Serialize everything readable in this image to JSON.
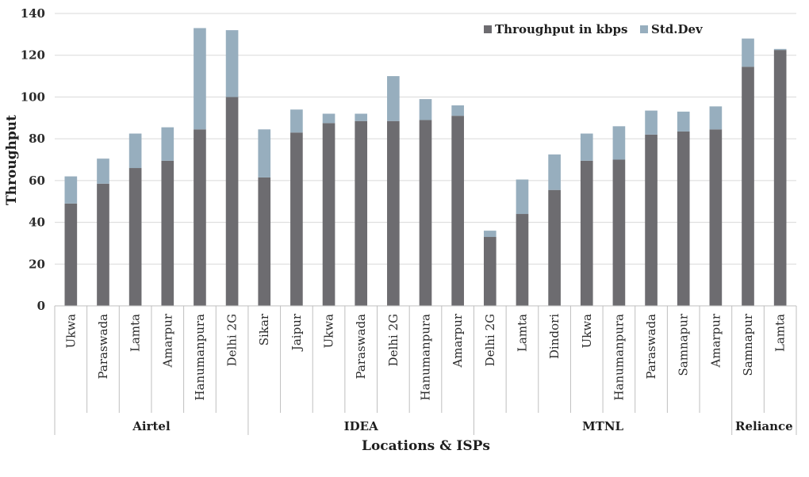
{
  "chart_data": {
    "type": "bar",
    "stacked": true,
    "xlabel": "Locations & ISPs",
    "ylabel": "Throughput",
    "ylim": [
      0,
      140
    ],
    "yticks": [
      0,
      20,
      40,
      60,
      80,
      100,
      120,
      140
    ],
    "grid": true,
    "legend_position": "top-right",
    "colors": {
      "throughput": "#6d6c70",
      "std_dev": "#97aebe",
      "grid": "#d9d9d9",
      "axis": "#bfbfbf"
    },
    "groups": [
      {
        "name": "Airtel",
        "categories": [
          "Ukwa",
          "Paraswada",
          "Lamta",
          "Amarpur",
          "Hanumanpura",
          "Delhi 2G"
        ]
      },
      {
        "name": "IDEA",
        "categories": [
          "Sikar",
          "Jaipur",
          "Ukwa",
          "Paraswada",
          "Delhi 2G",
          "Hanumanpura",
          "Amarpur"
        ]
      },
      {
        "name": "MTNL",
        "categories": [
          "Delhi 2G",
          "Lamta",
          "Dindori",
          "Ukwa",
          "Hanumanpura",
          "Paraswada",
          "Samnapur",
          "Amarpur"
        ]
      },
      {
        "name": "Reliance",
        "categories": [
          "Samnapur",
          "Lamta"
        ]
      }
    ],
    "series": [
      {
        "name": "Throughput in kbps",
        "values": [
          49,
          58.5,
          66,
          69.5,
          84.5,
          100,
          61.5,
          83,
          87.5,
          88.5,
          88.5,
          89,
          91,
          33,
          44,
          55.5,
          69.5,
          70,
          82,
          83.5,
          84.5,
          114.5,
          122.5
        ]
      },
      {
        "name": "Std.Dev",
        "values": [
          13,
          12,
          16.5,
          16,
          48.5,
          32,
          23,
          11,
          4.5,
          3.5,
          21.5,
          10,
          5,
          3,
          16.5,
          17,
          13,
          16,
          11.5,
          9.5,
          11,
          13.5,
          0.5
        ]
      }
    ]
  }
}
